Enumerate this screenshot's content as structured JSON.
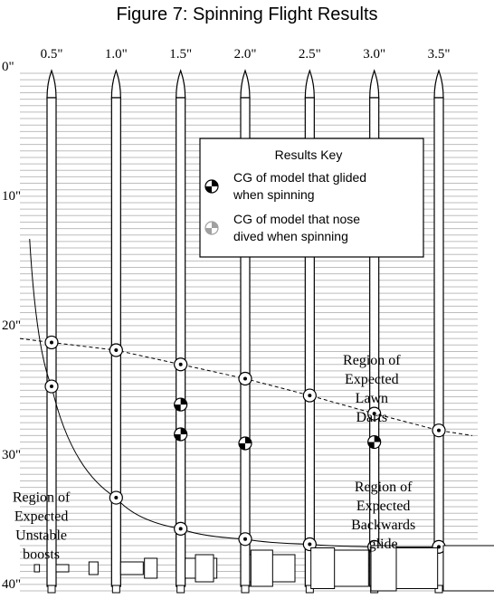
{
  "chart_data": {
    "type": "scatter",
    "title": "Figure 7: Spinning Flight Results",
    "categories": [
      "0.5\"",
      "1.0\"",
      "1.5\"",
      "2.0\"",
      "2.5\"",
      "3.0\"",
      "3.5\""
    ],
    "x_values": [
      0.5,
      1.0,
      1.5,
      2.0,
      2.5,
      3.0,
      3.5
    ],
    "y_tick_labels": [
      "0\"",
      "10\"",
      "20\"",
      "30\"",
      "40\""
    ],
    "y_ticks": [
      0,
      10,
      20,
      30,
      40
    ],
    "ylim": [
      0,
      40
    ],
    "y_inverted": true,
    "grid": true,
    "series": [
      {
        "name": "CG of model that glided when spinning",
        "color": "#000000",
        "points": [
          {
            "x": 1.5,
            "y": 25.6
          },
          {
            "x": 1.5,
            "y": 27.9
          },
          {
            "x": 2.0,
            "y": 28.6
          },
          {
            "x": 3.0,
            "y": 28.5
          }
        ]
      },
      {
        "name": "CG of model that nose dived when spinning",
        "color": "#a0a0a0",
        "points": []
      }
    ],
    "lines": [
      {
        "style": "dashed",
        "points": [
          {
            "x": 0.5,
            "y": 20.8
          },
          {
            "x": 1.0,
            "y": 21.4
          },
          {
            "x": 1.5,
            "y": 22.5
          },
          {
            "x": 2.0,
            "y": 23.6
          },
          {
            "x": 2.5,
            "y": 24.9
          },
          {
            "x": 3.0,
            "y": 26.3
          },
          {
            "x": 3.5,
            "y": 27.6
          }
        ]
      },
      {
        "style": "solid",
        "points": [
          {
            "x": 0.5,
            "y": 24.2
          },
          {
            "x": 1.0,
            "y": 32.8
          },
          {
            "x": 1.5,
            "y": 35.2
          },
          {
            "x": 2.0,
            "y": 36.0
          },
          {
            "x": 2.5,
            "y": 36.4
          },
          {
            "x": 3.0,
            "y": 36.6
          },
          {
            "x": 3.5,
            "y": 36.6
          }
        ]
      }
    ],
    "legend": {
      "title": "Results Key",
      "placement": "top-center",
      "entries": [
        {
          "line1": "CG of model that glided",
          "line2": "when spinning",
          "color": "#000000"
        },
        {
          "line1": "CG of model that nose",
          "line2": "dived when spinning",
          "color": "#a0a0a0"
        }
      ]
    },
    "annotations": [
      {
        "text": [
          "Region of",
          "Expected",
          "Lawn",
          "Darts"
        ],
        "x": 2.98,
        "y": 22.5
      },
      {
        "text": [
          "Region of",
          "Expected",
          "Backwards",
          "glide"
        ],
        "x": 3.07,
        "y": 32.3
      },
      {
        "text": [
          "Region of",
          "Expected",
          "Unstable",
          "boosts"
        ],
        "x": 0.42,
        "y": 33.1
      }
    ]
  }
}
